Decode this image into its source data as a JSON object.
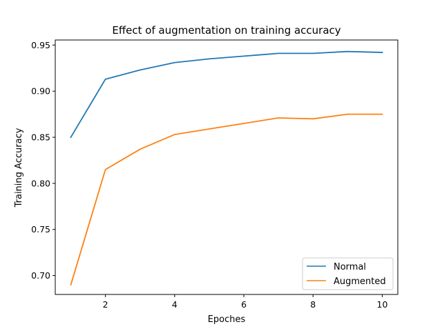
{
  "chart_data": {
    "type": "line",
    "title": "Effect of augmentation on training accuracy",
    "xlabel": "Epoches",
    "ylabel": "Training Accuracy",
    "x": [
      1,
      2,
      3,
      4,
      5,
      6,
      7,
      8,
      9,
      10
    ],
    "series": [
      {
        "name": "Normal",
        "color": "#1f77b4",
        "values": [
          0.85,
          0.913,
          0.923,
          0.931,
          0.935,
          0.938,
          0.941,
          0.941,
          0.943,
          0.942
        ]
      },
      {
        "name": "Augmented",
        "color": "#ff7f0e",
        "values": [
          0.69,
          0.815,
          0.837,
          0.853,
          0.859,
          0.865,
          0.871,
          0.87,
          0.875,
          0.875
        ]
      }
    ],
    "xlim": [
      0.55,
      10.45
    ],
    "ylim": [
      0.6795,
      0.9555
    ],
    "xticks": [
      2,
      4,
      6,
      8,
      10
    ],
    "xtick_labels": [
      "2",
      "4",
      "6",
      "8",
      "10"
    ],
    "yticks": [
      0.7,
      0.75,
      0.8,
      0.85,
      0.9,
      0.95
    ],
    "ytick_labels": [
      "0.70",
      "0.75",
      "0.80",
      "0.85",
      "0.90",
      "0.95"
    ],
    "grid": false,
    "legend_position": "lower-right"
  }
}
